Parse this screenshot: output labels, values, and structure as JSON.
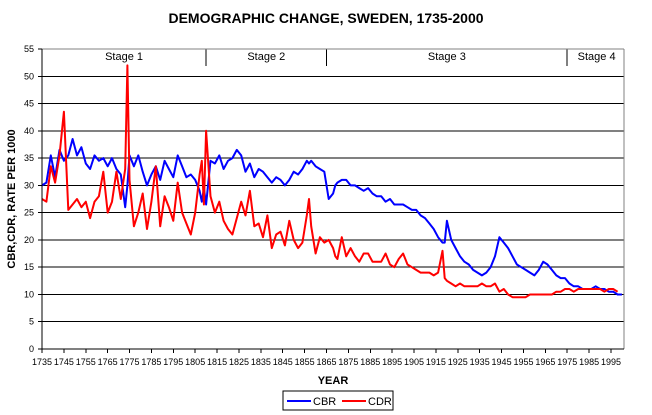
{
  "chart_data": {
    "type": "line",
    "title": "DEMOGRAPHIC CHANGE, SWEDEN, 1735-2000",
    "xlabel": "YEAR",
    "ylabel": "CBR,CDR, RATE PER 1000",
    "xlim": [
      1735,
      2000
    ],
    "ylim": [
      0,
      55
    ],
    "ytick_step": 5,
    "yticks": [
      "0",
      "5",
      "10",
      "15",
      "20",
      "25",
      "30",
      "35",
      "40",
      "45",
      "50",
      "55"
    ],
    "xticks": [
      "1735",
      "1745",
      "1755",
      "1765",
      "1775",
      "1785",
      "1795",
      "1805",
      "1815",
      "1825",
      "1835",
      "1845",
      "1855",
      "1865",
      "1875",
      "1885",
      "1895",
      "1905",
      "1915",
      "1925",
      "1935",
      "1945",
      "1955",
      "1965",
      "1975",
      "1985",
      "1995"
    ],
    "grid": true,
    "legend_position": "bottom-center",
    "stages": [
      {
        "label": "Stage 1",
        "start": 1735,
        "end": 1810
      },
      {
        "label": "Stage 2",
        "start": 1810,
        "end": 1865
      },
      {
        "label": "Stage 3",
        "start": 1865,
        "end": 1975
      },
      {
        "label": "Stage 4",
        "start": 1975,
        "end": 2000
      }
    ],
    "x": [
      1735,
      1737,
      1739,
      1741,
      1743,
      1745,
      1747,
      1749,
      1751,
      1753,
      1755,
      1757,
      1759,
      1761,
      1763,
      1765,
      1767,
      1769,
      1771,
      1773,
      1774,
      1775,
      1777,
      1779,
      1781,
      1783,
      1785,
      1787,
      1789,
      1791,
      1793,
      1795,
      1797,
      1799,
      1801,
      1803,
      1805,
      1807,
      1808,
      1809,
      1810,
      1812,
      1814,
      1816,
      1818,
      1820,
      1822,
      1824,
      1826,
      1828,
      1830,
      1832,
      1834,
      1836,
      1838,
      1840,
      1842,
      1844,
      1846,
      1848,
      1850,
      1852,
      1854,
      1856,
      1857,
      1858,
      1860,
      1862,
      1864,
      1866,
      1868,
      1869,
      1870,
      1872,
      1874,
      1876,
      1878,
      1880,
      1882,
      1884,
      1886,
      1888,
      1890,
      1892,
      1894,
      1896,
      1898,
      1900,
      1902,
      1904,
      1906,
      1908,
      1910,
      1912,
      1914,
      1916,
      1918,
      1919,
      1920,
      1922,
      1924,
      1926,
      1928,
      1930,
      1932,
      1934,
      1936,
      1938,
      1940,
      1942,
      1944,
      1946,
      1948,
      1950,
      1952,
      1954,
      1956,
      1958,
      1960,
      1962,
      1964,
      1966,
      1968,
      1970,
      1972,
      1974,
      1976,
      1978,
      1980,
      1982,
      1984,
      1986,
      1988,
      1990,
      1992,
      1994,
      1996,
      1998,
      2000
    ],
    "series": [
      {
        "name": "CBR",
        "color": "#0000ff",
        "values": [
          30.0,
          30.5,
          35.5,
          31.5,
          36.5,
          34.5,
          35.5,
          38.5,
          35.5,
          37.0,
          34.0,
          33.0,
          35.5,
          34.5,
          35.0,
          33.5,
          35.0,
          33.0,
          32.0,
          26.0,
          30.0,
          35.5,
          33.5,
          35.5,
          32.5,
          30.0,
          32.0,
          33.5,
          31.0,
          34.5,
          33.0,
          31.5,
          35.5,
          33.5,
          31.5,
          32.0,
          31.0,
          29.0,
          27.0,
          29.5,
          26.5,
          34.5,
          34.0,
          35.5,
          33.0,
          34.5,
          35.0,
          36.5,
          35.5,
          32.5,
          34.0,
          31.5,
          33.0,
          32.5,
          31.5,
          30.5,
          31.5,
          31.0,
          30.0,
          31.0,
          32.5,
          32.0,
          33.0,
          34.5,
          34.0,
          34.5,
          33.5,
          33.0,
          32.5,
          27.5,
          28.5,
          30.0,
          30.5,
          31.0,
          31.0,
          30.0,
          30.0,
          29.5,
          29.0,
          29.5,
          28.5,
          28.0,
          28.0,
          27.0,
          27.5,
          26.5,
          26.5,
          26.5,
          26.0,
          25.5,
          25.5,
          24.5,
          24.0,
          23.0,
          22.0,
          20.5,
          19.5,
          19.5,
          23.5,
          20.0,
          18.5,
          17.0,
          16.0,
          15.5,
          14.5,
          14.0,
          13.5,
          14.0,
          15.0,
          17.0,
          20.5,
          19.5,
          18.5,
          17.0,
          15.5,
          15.0,
          14.5,
          14.0,
          13.5,
          14.5,
          16.0,
          15.5,
          14.5,
          13.5,
          13.0,
          13.0,
          12.0,
          11.5,
          11.5,
          11.0,
          11.0,
          11.0,
          11.5,
          11.0,
          11.0,
          10.5,
          10.5,
          10.0,
          10.0
        ]
      },
      {
        "name": "CDR",
        "color": "#ff0000",
        "values": [
          27.5,
          27.0,
          33.5,
          30.5,
          35.5,
          43.5,
          25.5,
          26.5,
          27.5,
          26.0,
          27.0,
          24.0,
          27.0,
          28.0,
          32.5,
          25.0,
          27.0,
          32.5,
          27.5,
          33.0,
          52.0,
          31.0,
          22.5,
          25.0,
          28.5,
          22.0,
          27.0,
          33.5,
          22.5,
          28.0,
          26.0,
          23.5,
          30.5,
          25.0,
          23.0,
          21.0,
          25.0,
          32.0,
          34.5,
          26.5,
          40.0,
          28.0,
          25.0,
          27.0,
          23.5,
          22.0,
          21.0,
          24.0,
          27.0,
          24.5,
          29.0,
          22.5,
          23.0,
          20.5,
          24.5,
          18.5,
          21.0,
          21.5,
          19.0,
          23.5,
          20.0,
          18.5,
          19.5,
          24.5,
          27.5,
          22.5,
          17.5,
          20.5,
          19.5,
          20.0,
          18.5,
          17.0,
          16.5,
          20.5,
          17.0,
          18.5,
          17.0,
          16.0,
          17.5,
          17.5,
          16.0,
          16.0,
          16.0,
          17.5,
          15.5,
          15.0,
          16.5,
          17.5,
          15.5,
          15.0,
          14.5,
          14.0,
          14.0,
          14.0,
          13.5,
          14.0,
          18.0,
          13.0,
          12.5,
          12.0,
          11.5,
          12.0,
          11.5,
          11.5,
          11.5,
          11.5,
          12.0,
          11.5,
          11.5,
          12.0,
          10.5,
          11.0,
          10.0,
          9.5,
          9.5,
          9.5,
          9.5,
          10.0,
          10.0,
          10.0,
          10.0,
          10.0,
          10.0,
          10.5,
          10.5,
          11.0,
          11.0,
          10.5,
          11.0,
          11.0,
          11.0,
          11.0,
          11.0,
          11.0,
          10.5,
          11.0,
          11.0,
          10.5
        ]
      }
    ]
  }
}
